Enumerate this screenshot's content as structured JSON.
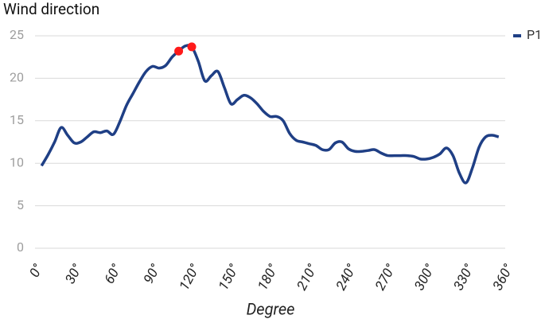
{
  "chart_data": {
    "type": "line",
    "title": "Wind direction",
    "x_label": "Degree",
    "x": [
      5,
      10,
      15,
      20,
      25,
      30,
      35,
      40,
      45,
      50,
      55,
      60,
      65,
      70,
      75,
      80,
      85,
      90,
      95,
      100,
      105,
      110,
      115,
      120,
      125,
      130,
      135,
      140,
      145,
      150,
      155,
      160,
      165,
      170,
      175,
      180,
      185,
      190,
      195,
      200,
      205,
      210,
      215,
      220,
      225,
      230,
      235,
      240,
      245,
      250,
      255,
      260,
      265,
      270,
      275,
      280,
      285,
      290,
      295,
      300,
      305,
      310,
      315,
      320,
      325,
      330,
      335,
      340,
      345,
      350,
      355
    ],
    "series": [
      {
        "name": "P1",
        "color": "#1f3f85",
        "values": [
          9.7,
          11.0,
          12.5,
          14.2,
          13.3,
          12.4,
          12.5,
          13.1,
          13.7,
          13.6,
          13.8,
          13.4,
          14.9,
          16.8,
          18.2,
          19.6,
          20.8,
          21.4,
          21.2,
          21.5,
          22.5,
          23.2,
          23.8,
          23.7,
          22.0,
          19.7,
          20.3,
          20.8,
          18.9,
          17.0,
          17.5,
          18.0,
          17.7,
          17.0,
          16.1,
          15.5,
          15.5,
          15.0,
          13.5,
          12.7,
          12.5,
          12.3,
          12.1,
          11.6,
          11.6,
          12.4,
          12.5,
          11.7,
          11.4,
          11.4,
          11.5,
          11.6,
          11.2,
          10.9,
          10.9,
          10.9,
          10.9,
          10.8,
          10.5,
          10.5,
          10.7,
          11.1,
          11.8,
          10.9,
          8.8,
          7.7,
          9.5,
          11.9,
          13.1,
          13.3,
          13.1
        ],
        "highlight": {
          "color": "#ff1a1a",
          "indices": [
            21,
            23
          ]
        }
      }
    ],
    "xlim": [
      0,
      360
    ],
    "xticks": [
      {
        "value": 0,
        "label": "0°"
      },
      {
        "value": 30,
        "label": "30°"
      },
      {
        "value": 60,
        "label": "60°"
      },
      {
        "value": 90,
        "label": "90°"
      },
      {
        "value": 120,
        "label": "120°"
      },
      {
        "value": 150,
        "label": "150°"
      },
      {
        "value": 180,
        "label": "180°"
      },
      {
        "value": 210,
        "label": "210°"
      },
      {
        "value": 240,
        "label": "240°"
      },
      {
        "value": 270,
        "label": "270°"
      },
      {
        "value": 300,
        "label": "300°"
      },
      {
        "value": 330,
        "label": "330°"
      },
      {
        "value": 360,
        "label": "360°"
      }
    ],
    "ylim": [
      0,
      25
    ],
    "yticks": [
      0,
      5,
      10,
      15,
      20,
      25
    ],
    "grid": true,
    "legend": "top-right"
  }
}
